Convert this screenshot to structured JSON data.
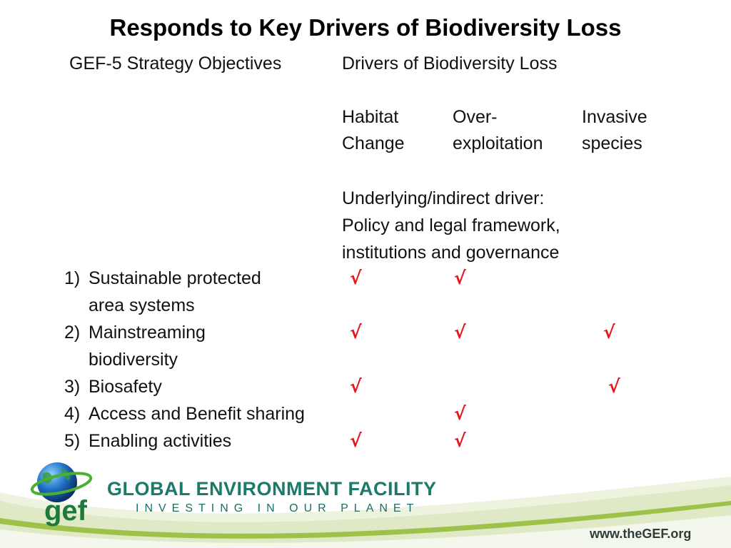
{
  "title": "Responds to Key Drivers of Biodiversity Loss",
  "headers": {
    "left": "GEF-5 Strategy Objectives",
    "right": "Drivers of Biodiversity Loss"
  },
  "drivers": [
    {
      "line1": "Habitat",
      "line2": "Change"
    },
    {
      "line1": "Over-",
      "line2": "exploitation"
    },
    {
      "line1": "Invasive",
      "line2": "species"
    }
  ],
  "underlying": {
    "line1": "Underlying/indirect driver:",
    "line2": "Policy and legal framework,",
    "line3": "institutions and governance"
  },
  "check_glyph": "√",
  "objectives": [
    {
      "num": "1)",
      "line1": "Sustainable protected",
      "line2": "area systems",
      "checks": [
        true,
        true,
        false
      ]
    },
    {
      "num": "2)",
      "line1": "Mainstreaming",
      "line2": "biodiversity",
      "checks": [
        true,
        true,
        true
      ]
    },
    {
      "num": "3)",
      "line1": "Biosafety",
      "line2": "",
      "checks": [
        true,
        false,
        true
      ]
    },
    {
      "num": "4)",
      "line1": "Access and Benefit sharing",
      "line2": "",
      "checks": [
        false,
        true,
        false
      ]
    },
    {
      "num": "5)",
      "line1": "Enabling activities",
      "line2": "",
      "checks": [
        true,
        true,
        false
      ]
    }
  ],
  "footer": {
    "logo_word": "gef",
    "brand_name": "GLOBAL ENVIRONMENT FACILITY",
    "tagline": "INVESTING IN OUR PLANET",
    "url": "www.theGEF.org"
  },
  "colors": {
    "check": "#e8141c",
    "brand": "#1b7a6a",
    "swoosh_green": "#9cc24a",
    "swoosh_light": "#dfe9c6"
  }
}
